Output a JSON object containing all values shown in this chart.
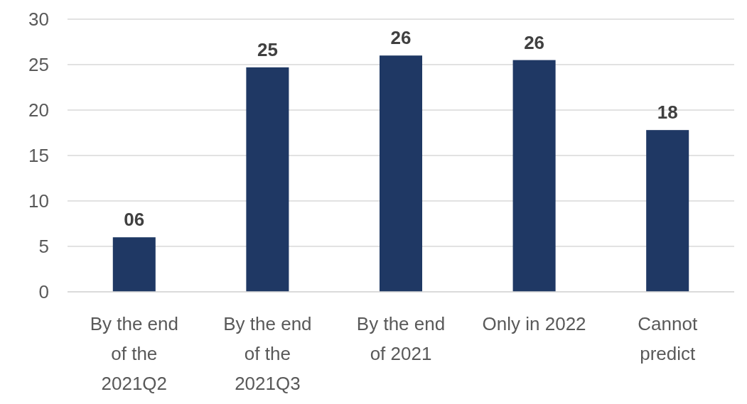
{
  "chart_data": {
    "type": "bar",
    "categories": [
      "By the end of the 2021Q2",
      "By the end of the 2021Q3",
      "By the end of 2021",
      "Only in 2022",
      "Cannot predict"
    ],
    "values": [
      6,
      24.7,
      26,
      25.5,
      17.8
    ],
    "value_labels": [
      "06",
      "25",
      "26",
      "26",
      "18"
    ],
    "color": "#1f3864",
    "ylim": [
      0,
      30
    ],
    "yticks": [
      0,
      5,
      10,
      15,
      20,
      25,
      30
    ],
    "grid": "y"
  }
}
